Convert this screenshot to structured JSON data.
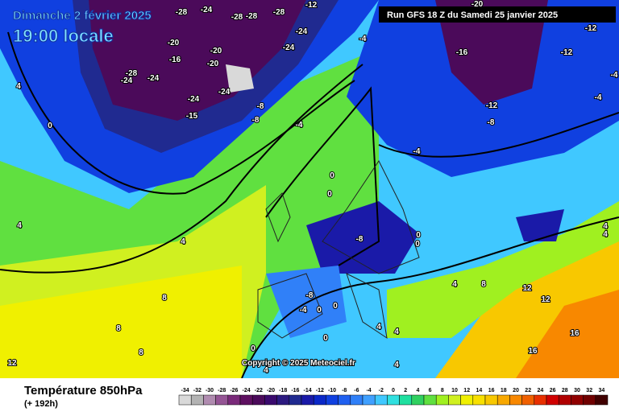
{
  "header": {
    "date": "Dimanche 2 février 2025",
    "time": "19:00 locale",
    "run": "Run GFS 18 Z du Samedi 25 janvier 2025"
  },
  "footer": {
    "title": "Température 850hPa",
    "lead": "(+ 192h)",
    "copyright": "Copyright © 2025 Meteociel.fr"
  },
  "scale": [
    {
      "value": -34,
      "color": "#d9d9d9"
    },
    {
      "value": -32,
      "color": "#b3b3b3"
    },
    {
      "value": -30,
      "color": "#b08cb0"
    },
    {
      "value": -28,
      "color": "#955595"
    },
    {
      "value": -26,
      "color": "#7a2a7a"
    },
    {
      "value": -24,
      "color": "#5e1060"
    },
    {
      "value": -22,
      "color": "#4b0a5a"
    },
    {
      "value": -20,
      "color": "#3a0a6e"
    },
    {
      "value": -18,
      "color": "#2c1a80"
    },
    {
      "value": -16,
      "color": "#202a90"
    },
    {
      "value": -14,
      "color": "#1a1aa8"
    },
    {
      "value": -12,
      "color": "#0a28c8"
    },
    {
      "value": -10,
      "color": "#1040e0"
    },
    {
      "value": -8,
      "color": "#2060f0"
    },
    {
      "value": -6,
      "color": "#3080f8"
    },
    {
      "value": -4,
      "color": "#40a0ff"
    },
    {
      "value": -2,
      "color": "#40c8ff"
    },
    {
      "value": 0,
      "color": "#30e0e0"
    },
    {
      "value": 2,
      "color": "#20e0a0"
    },
    {
      "value": 4,
      "color": "#30d060"
    },
    {
      "value": 6,
      "color": "#60e040"
    },
    {
      "value": 8,
      "color": "#a0f020"
    },
    {
      "value": 10,
      "color": "#d0f020"
    },
    {
      "value": 12,
      "color": "#f0f000"
    },
    {
      "value": 14,
      "color": "#f8e000"
    },
    {
      "value": 16,
      "color": "#f8c800"
    },
    {
      "value": 18,
      "color": "#f8a800"
    },
    {
      "value": 20,
      "color": "#f88800"
    },
    {
      "value": 22,
      "color": "#f06000"
    },
    {
      "value": 24,
      "color": "#e83000"
    },
    {
      "value": 26,
      "color": "#d00000"
    },
    {
      "value": 28,
      "color": "#b00000"
    },
    {
      "value": 30,
      "color": "#900000"
    },
    {
      "value": 32,
      "color": "#700000"
    },
    {
      "value": 34,
      "color": "#400000"
    }
  ],
  "map_labels": [
    "-28",
    "-24",
    "-28",
    "-28",
    "-28",
    "-12",
    "-20",
    "-20",
    "-16",
    "-20",
    "-24",
    "-24",
    "-28",
    "-24",
    "-24",
    "-24",
    "-15",
    "-24",
    "-8",
    "-8",
    "-4",
    "-4",
    "-16",
    "-20",
    "-12",
    "-12",
    "-12",
    "-8",
    "4",
    "0",
    "4",
    "4",
    "8",
    "8",
    "8",
    "12",
    "-4",
    "0",
    "0",
    "-8",
    "0",
    "0",
    "-8",
    "-4",
    "0",
    "4",
    "8",
    "12",
    "12",
    "16",
    "16",
    "4",
    "4",
    "0",
    "0",
    "0",
    "4",
    "4",
    "4",
    "4",
    "-4",
    "-4"
  ]
}
